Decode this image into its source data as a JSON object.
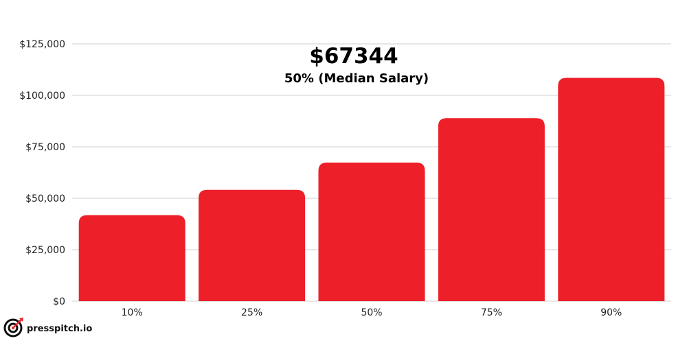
{
  "chart_data": {
    "type": "bar",
    "title": "$67344",
    "subtitle": "50% (Median Salary)",
    "categories": [
      "10%",
      "25%",
      "50%",
      "75%",
      "90%"
    ],
    "values": [
      41800,
      54100,
      67344,
      88900,
      108500
    ],
    "ylim": [
      0,
      125000
    ],
    "yticks": [
      0,
      25000,
      50000,
      75000,
      100000,
      125000
    ],
    "ytick_labels": [
      "$0",
      "$25,000",
      "$50,000",
      "$75,000",
      "$100,000",
      "$125,000"
    ],
    "grid": true,
    "bar_color": "#ED1F28",
    "grid_color": "#CFCFCF"
  },
  "brand": {
    "name": "presspitch.io",
    "icon": "target-arrow-icon"
  }
}
